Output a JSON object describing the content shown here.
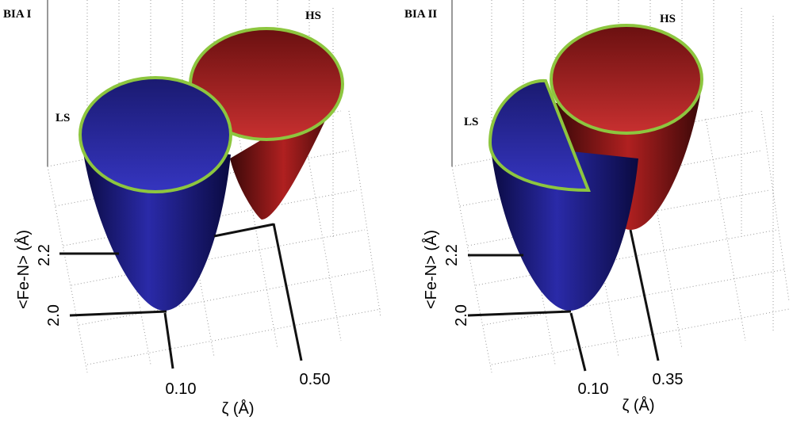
{
  "panels": [
    {
      "title": "BIA I",
      "ls_label": "LS",
      "hs_label": "HS",
      "y_axis_label": "<Fe-N> (Å)",
      "x_axis_label": "ζ (Å)",
      "y_ticks": [
        "2.2",
        "2.0"
      ],
      "x_ticks": [
        "0.10",
        "0.50"
      ]
    },
    {
      "title": "BIA II",
      "ls_label": "LS",
      "hs_label": "HS",
      "y_axis_label": "<Fe-N> (Å)",
      "x_axis_label": "ζ (Å)",
      "y_ticks": [
        "2.2",
        "2.0"
      ],
      "x_ticks": [
        "0.10",
        "0.35"
      ]
    }
  ]
}
